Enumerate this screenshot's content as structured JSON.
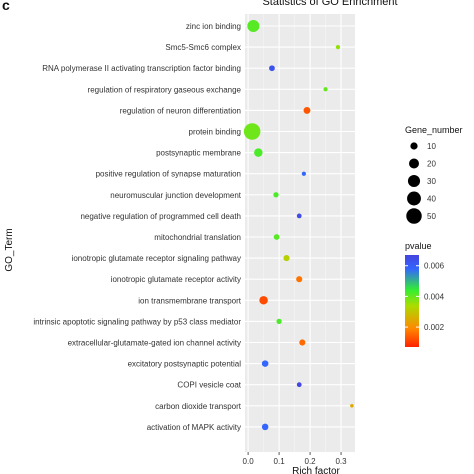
{
  "panel_letter": "c",
  "chart_data": {
    "type": "scatter",
    "title": "Statistics of GO Enrichment",
    "xlabel": "Rich factor",
    "ylabel": "GO_Term",
    "xlim": [
      -0.01,
      0.345
    ],
    "xticks": [
      0.0,
      0.1,
      0.2,
      0.3
    ],
    "xtick_labels": [
      "0.0",
      "0.1",
      "0.2",
      "0.3"
    ],
    "grid": true,
    "legend_placement": "right",
    "terms": [
      "zinc ion binding",
      "Smc5-Smc6 complex",
      "RNA polymerase II activating transcription factor binding",
      "regulation of respiratory gaseous exchange",
      "regulation of neuron differentiation",
      "protein binding",
      "postsynaptic membrane",
      "positive regulation of synapse maturation",
      "neuromuscular junction development",
      "negative regulation of programmed cell death",
      "mitochondrial translation",
      "ionotropic glutamate receptor signaling pathway",
      "ionotropic glutamate receptor activity",
      "ion transmembrane transport",
      "intrinsic apoptotic signaling pathway by p53 class mediator",
      "extracellular-glutamate-gated ion channel activity",
      "excitatory postsynaptic potential",
      "COPI vesicle coat",
      "carbon dioxide transport",
      "activation of MAPK activity"
    ],
    "points": [
      {
        "term": "zinc ion binding",
        "rich_factor": 0.017,
        "gene_number": 30,
        "pvalue": 0.0037
      },
      {
        "term": "Smc5-Smc6 complex",
        "rich_factor": 0.29,
        "gene_number": 3,
        "pvalue": 0.0032
      },
      {
        "term": "RNA polymerase II activating transcription factor binding",
        "rich_factor": 0.077,
        "gene_number": 6,
        "pvalue": 0.0063
      },
      {
        "term": "regulation of respiratory gaseous exchange",
        "rich_factor": 0.25,
        "gene_number": 3,
        "pvalue": 0.0036
      },
      {
        "term": "regulation of neuron differentiation",
        "rich_factor": 0.19,
        "gene_number": 9,
        "pvalue": 0.0012
      },
      {
        "term": "protein binding",
        "rich_factor": 0.013,
        "gene_number": 58,
        "pvalue": 0.0035
      },
      {
        "term": "postsynaptic membrane",
        "rich_factor": 0.033,
        "gene_number": 14,
        "pvalue": 0.0038
      },
      {
        "term": "positive regulation of synapse maturation",
        "rich_factor": 0.18,
        "gene_number": 3,
        "pvalue": 0.0058
      },
      {
        "term": "neuromuscular junction development",
        "rich_factor": 0.09,
        "gene_number": 5,
        "pvalue": 0.0038
      },
      {
        "term": "negative regulation of programmed cell death",
        "rich_factor": 0.165,
        "gene_number": 4,
        "pvalue": 0.0065
      },
      {
        "term": "mitochondrial translation",
        "rich_factor": 0.092,
        "gene_number": 6,
        "pvalue": 0.0037
      },
      {
        "term": "ionotropic glutamate receptor signaling pathway",
        "rich_factor": 0.124,
        "gene_number": 7,
        "pvalue": 0.0028
      },
      {
        "term": "ionotropic glutamate receptor activity",
        "rich_factor": 0.165,
        "gene_number": 7,
        "pvalue": 0.0015
      },
      {
        "term": "ion transmembrane transport",
        "rich_factor": 0.05,
        "gene_number": 14,
        "pvalue": 0.0011
      },
      {
        "term": "intrinsic apoptotic signaling pathway by p53 class mediator",
        "rich_factor": 0.1,
        "gene_number": 5,
        "pvalue": 0.0038
      },
      {
        "term": "extracellular-glutamate-gated ion channel activity",
        "rich_factor": 0.175,
        "gene_number": 7,
        "pvalue": 0.0014
      },
      {
        "term": "excitatory postsynaptic potential",
        "rich_factor": 0.055,
        "gene_number": 8,
        "pvalue": 0.0058
      },
      {
        "term": "COPI vesicle coat",
        "rich_factor": 0.165,
        "gene_number": 4,
        "pvalue": 0.0066
      },
      {
        "term": "carbon dioxide transport",
        "rich_factor": 0.335,
        "gene_number": 2,
        "pvalue": 0.0022
      },
      {
        "term": "activation of MAPK activity",
        "rich_factor": 0.055,
        "gene_number": 8,
        "pvalue": 0.0058
      }
    ],
    "size_legend": {
      "title": "Gene_number",
      "values": [
        10,
        20,
        30,
        40,
        50
      ],
      "labels": [
        "10",
        "20",
        "30",
        "40",
        "50"
      ]
    },
    "color_legend": {
      "title": "pvalue",
      "range": [
        0.0007,
        0.0067
      ],
      "ticks": [
        0.002,
        0.004,
        0.006
      ],
      "tick_labels": [
        "0.002",
        "0.004",
        "0.006"
      ],
      "colors": [
        "#ff2200",
        "#ff8800",
        "#aadd00",
        "#33ee33",
        "#3366ff",
        "#4444dd"
      ]
    }
  }
}
